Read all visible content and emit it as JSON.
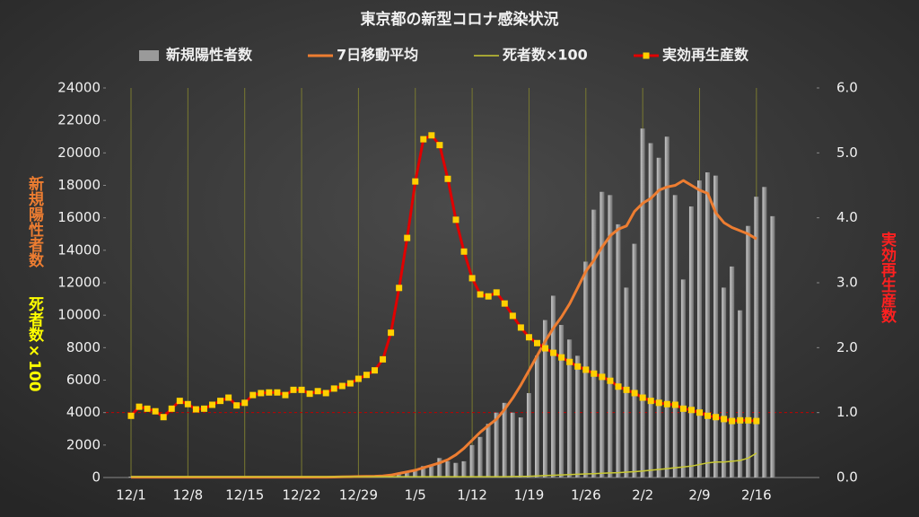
{
  "chart_data": {
    "type": "combo",
    "title": "東京都の新型コロナ感染状況",
    "y_label": "新規陽性者数",
    "y_label_2": "死者数×100",
    "y2_label": "実効再生産数",
    "categories": [
      "12/1",
      null,
      null,
      null,
      null,
      null,
      null,
      "12/8",
      null,
      null,
      null,
      null,
      null,
      null,
      "12/15",
      null,
      null,
      null,
      null,
      null,
      null,
      "12/22",
      null,
      null,
      null,
      null,
      null,
      null,
      "12/29",
      null,
      null,
      null,
      null,
      null,
      null,
      "1/5",
      null,
      null,
      null,
      null,
      null,
      null,
      "1/12",
      null,
      null,
      null,
      null,
      null,
      null,
      "1/19",
      null,
      null,
      null,
      null,
      null,
      null,
      "1/26",
      null,
      null,
      null,
      null,
      null,
      null,
      "2/2",
      null,
      null,
      null,
      null,
      null,
      null,
      "2/9",
      null,
      null,
      null,
      null,
      null,
      null,
      "2/16",
      null,
      null
    ],
    "series": [
      {
        "name": "新規陽性者数",
        "type": "bar",
        "color": "#9a9a9a",
        "values": [
          50,
          50,
          50,
          50,
          50,
          50,
          50,
          50,
          50,
          50,
          50,
          50,
          50,
          50,
          50,
          50,
          50,
          50,
          50,
          50,
          50,
          50,
          50,
          50,
          50,
          50,
          50,
          50,
          50,
          50,
          50,
          100,
          150,
          200,
          300,
          500,
          700,
          800,
          1200,
          1000,
          900,
          1000,
          2000,
          2500,
          3300,
          4000,
          4600,
          4000,
          3700,
          5200,
          7500,
          9700,
          11200,
          9400,
          8500,
          7500,
          13300,
          16500,
          17600,
          17400,
          15600,
          11700,
          14400,
          21500,
          20600,
          19700,
          21000,
          17400,
          12200,
          16700,
          18300,
          18800,
          18600,
          11700,
          13000,
          10300,
          15500,
          17300,
          17900,
          16100
        ]
      },
      {
        "name": "7日移動平均",
        "type": "line",
        "color": "#ed7d31",
        "width": 3,
        "values": [
          20,
          20,
          20,
          20,
          20,
          20,
          20,
          20,
          20,
          20,
          20,
          20,
          20,
          20,
          20,
          20,
          20,
          20,
          20,
          20,
          20,
          20,
          20,
          20,
          20,
          30,
          40,
          50,
          60,
          70,
          80,
          100,
          150,
          250,
          350,
          450,
          600,
          750,
          900,
          1100,
          1400,
          1800,
          2300,
          2800,
          3200,
          3600,
          4200,
          4900,
          5700,
          6600,
          7500,
          8400,
          9200,
          9900,
          10700,
          11700,
          12700,
          13400,
          14200,
          14900,
          15300,
          15500,
          16400,
          16900,
          17200,
          17700,
          17900,
          18000,
          18300,
          18000,
          17700,
          17500,
          16300,
          15700,
          15400,
          15200,
          15000,
          14700,
          null,
          null
        ]
      },
      {
        "name": "死者数×100",
        "type": "line",
        "color": "#c8c832",
        "width": 1.5,
        "values": [
          50,
          50,
          50,
          50,
          50,
          50,
          50,
          50,
          50,
          50,
          50,
          50,
          50,
          50,
          50,
          50,
          50,
          50,
          50,
          50,
          50,
          50,
          50,
          50,
          50,
          50,
          50,
          50,
          50,
          50,
          50,
          50,
          50,
          50,
          50,
          50,
          50,
          50,
          50,
          50,
          50,
          50,
          50,
          50,
          50,
          50,
          50,
          60,
          70,
          80,
          100,
          120,
          140,
          160,
          180,
          200,
          220,
          240,
          260,
          280,
          300,
          330,
          360,
          400,
          450,
          500,
          550,
          600,
          650,
          700,
          800,
          900,
          950,
          950,
          1000,
          1050,
          1200,
          1500,
          null,
          null
        ]
      },
      {
        "name": "実効再生産数",
        "type": "line",
        "axis": "y2",
        "color": "#e00000",
        "marker_color": "#ffd000",
        "width": 3,
        "values": [
          0.95,
          1.09,
          1.06,
          1.02,
          0.93,
          1.06,
          1.18,
          1.13,
          1.05,
          1.06,
          1.12,
          1.18,
          1.23,
          1.11,
          1.15,
          1.27,
          1.3,
          1.31,
          1.31,
          1.27,
          1.35,
          1.35,
          1.29,
          1.33,
          1.3,
          1.37,
          1.41,
          1.45,
          1.52,
          1.58,
          1.65,
          1.82,
          2.23,
          2.92,
          3.69,
          4.56,
          5.21,
          5.27,
          5.12,
          4.6,
          3.97,
          3.48,
          3.07,
          2.82,
          2.79,
          2.85,
          2.68,
          2.49,
          2.31,
          2.16,
          2.07,
          1.99,
          1.92,
          1.85,
          1.78,
          1.71,
          1.66,
          1.6,
          1.55,
          1.49,
          1.4,
          1.35,
          1.3,
          1.23,
          1.18,
          1.15,
          1.13,
          1.12,
          1.06,
          1.04,
          1.0,
          0.95,
          0.93,
          0.9,
          0.87,
          0.88,
          0.88,
          0.87,
          null,
          null
        ]
      }
    ],
    "ylim": [
      0,
      24000
    ],
    "yticks": [
      0,
      2000,
      4000,
      6000,
      8000,
      10000,
      12000,
      14000,
      16000,
      18000,
      20000,
      22000,
      24000
    ],
    "y2lim": [
      0,
      6
    ],
    "y2ticks": [
      {
        "value": 0,
        "label": "0.0"
      },
      {
        "value": 1,
        "label": "1.0"
      },
      {
        "value": 2,
        "label": "2.0"
      },
      {
        "value": 3,
        "label": "3.0"
      },
      {
        "value": 4,
        "label": "4.0"
      },
      {
        "value": 5,
        "label": "5.0"
      },
      {
        "value": 6,
        "label": "6.0"
      }
    ],
    "y2_reference_line": 1.0,
    "x_grid": true,
    "legend": "top"
  }
}
